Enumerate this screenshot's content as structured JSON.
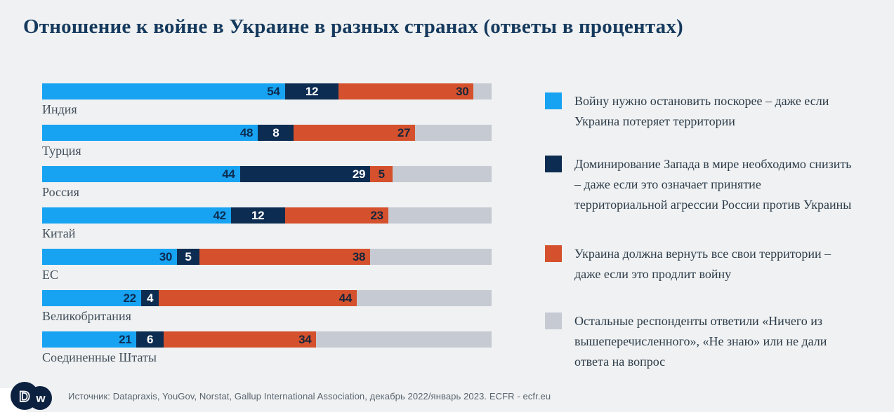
{
  "title": "Отношение к войне в Украине в разных странах (ответы в процентах)",
  "colors": {
    "background": "#eff1f2",
    "title_text": "#163a5e",
    "country_label_text": "#44505c",
    "legend_text": "#2d3c49",
    "footer_text": "#5a646e",
    "logo_navy": "#0c2040",
    "series_blue": "#17a3f2",
    "series_navy": "#0d2c51",
    "series_orange": "#d5512d",
    "series_gray": "#c6cbd3"
  },
  "chart_data": {
    "type": "bar",
    "orientation": "horizontal",
    "stacked": true,
    "unit": "percent",
    "title": "Отношение к войне в Украине в разных странах (ответы в процентах)",
    "xlabel": "",
    "ylabel": "",
    "xlim": [
      0,
      100
    ],
    "grid": false,
    "legend_position": "right",
    "categories": [
      "Индия",
      "Турция",
      "Россия",
      "Китай",
      "ЕС",
      "Великобритания",
      "Соединенные Штаты"
    ],
    "series": [
      {
        "key": "stop-war-soon",
        "name": "Войну нужно остановить поскорее – даже если Украина потеряет территории",
        "color": "#17a3f2",
        "label_color": "#0d2c51",
        "show_labels": true,
        "values": [
          54,
          48,
          44,
          42,
          30,
          22,
          21
        ]
      },
      {
        "key": "reduce-west-dominance",
        "name": "Доминирование Запада в мире необходимо снизить – даже если это означает принятие территориальной агрессии России против Украины",
        "color": "#0d2c51",
        "label_color": "#ffffff",
        "show_labels": true,
        "values": [
          12,
          8,
          29,
          12,
          5,
          4,
          6
        ]
      },
      {
        "key": "ukraine-regain-territories",
        "name": "Украина должна вернуть все свои территории – даже если это продлит войну",
        "color": "#d5512d",
        "label_color": "#17263b",
        "show_labels": true,
        "values": [
          30,
          27,
          5,
          23,
          38,
          44,
          34
        ]
      },
      {
        "key": "other-respondents",
        "name": "Остальные респонденты ответили «Ничего из вышеперечисленного», «Не знаю» или не дали ответа на вопрос",
        "color": "#c6cbd3",
        "label_color": "#2d3c49",
        "show_labels": false,
        "values": [
          4,
          17,
          22,
          23,
          27,
          30,
          39
        ]
      }
    ]
  },
  "footer": {
    "logo": "DW",
    "source": "Источник: Datapraxis, YouGov, Norstat, Gallup International Association, декабрь 2022/январь 2023. ECFR - ecfr.eu"
  }
}
